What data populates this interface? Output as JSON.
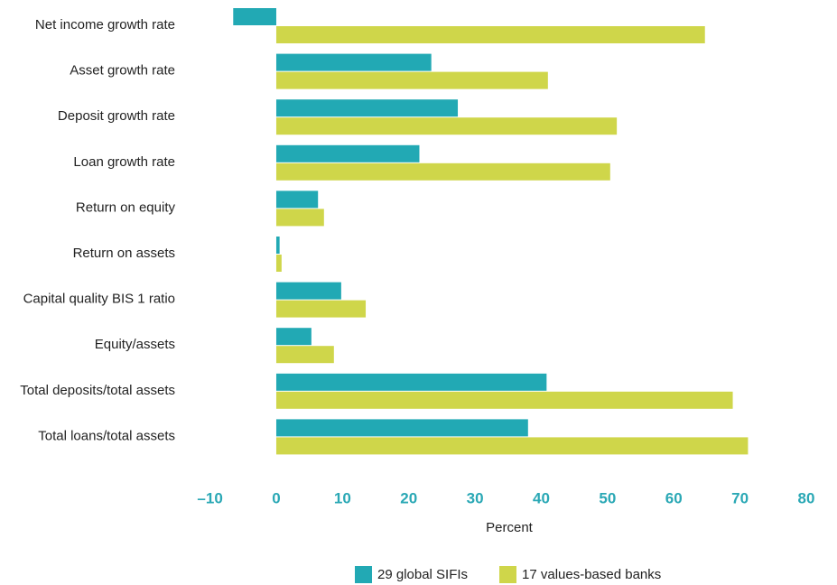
{
  "chart_data": {
    "type": "hbar",
    "categories": [
      "Net income growth rate",
      "Asset growth rate",
      "Deposit growth rate",
      "Loan growth rate",
      "Return on equity",
      "Return on assets",
      "Capital quality BIS 1 ratio",
      "Equity/assets",
      "Total deposits/total assets",
      "Total loans/total assets"
    ],
    "series": [
      {
        "name": "29 global SIFIs",
        "color": "#22a9b4",
        "values": [
          -6.5,
          23.4,
          27.4,
          21.6,
          6.3,
          0.5,
          9.8,
          5.3,
          40.8,
          38.0
        ]
      },
      {
        "name": "17 values-based banks",
        "color": "#cfd64a",
        "values": [
          64.7,
          41.0,
          51.4,
          50.4,
          7.2,
          0.8,
          13.5,
          8.7,
          68.9,
          71.2
        ]
      }
    ],
    "xlabel": "Percent",
    "xlim": [
      -10,
      80
    ],
    "xticks": [
      {
        "value": -10,
        "label": "–10"
      },
      0,
      10,
      20,
      30,
      40,
      50,
      60,
      70,
      80
    ],
    "grid": false,
    "legend": "bottom"
  }
}
